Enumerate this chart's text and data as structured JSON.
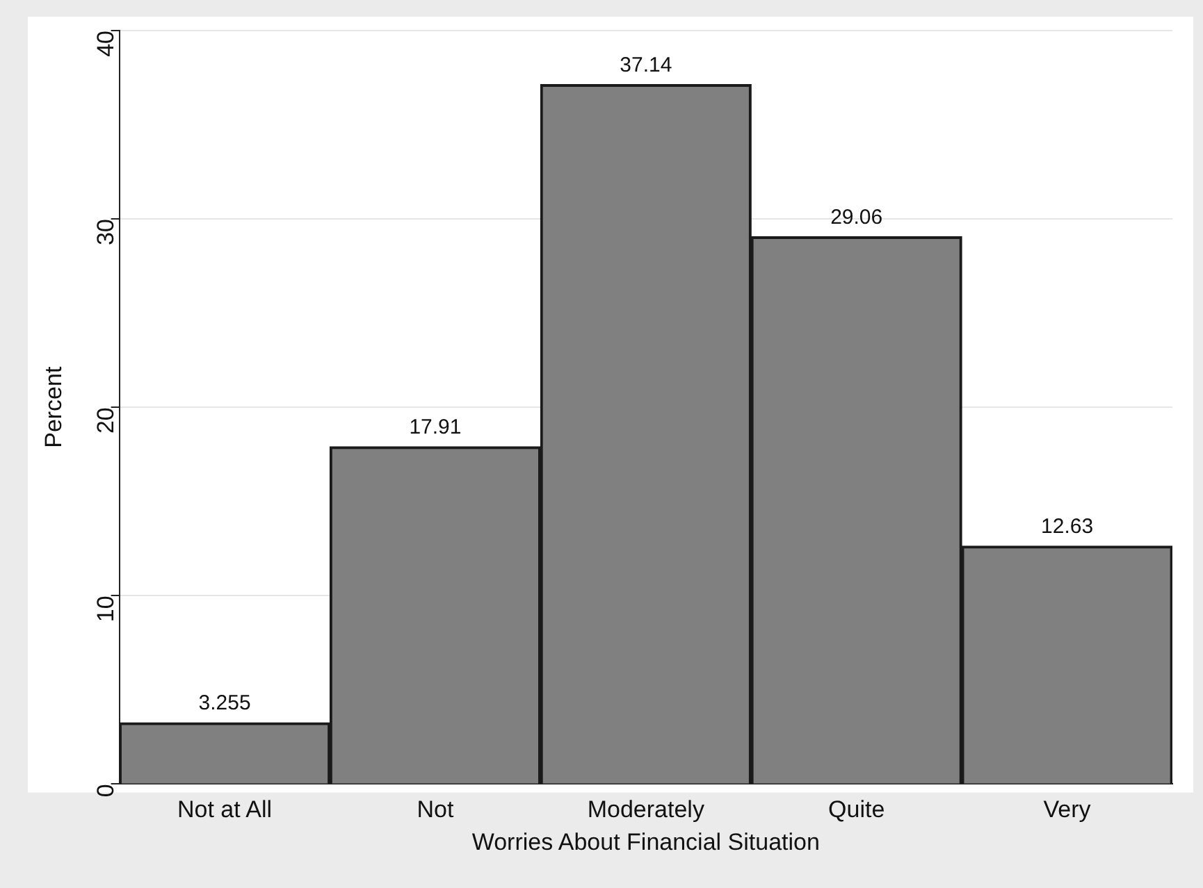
{
  "chart_data": {
    "type": "bar",
    "xlabel": "Worries About Financial Situation",
    "ylabel": "Percent",
    "categories": [
      "Not at All",
      "Not",
      "Moderately",
      "Quite",
      "Very"
    ],
    "values": [
      3.255,
      17.91,
      37.14,
      29.06,
      12.63
    ],
    "color": "#808080",
    "ylim": [
      0,
      40
    ],
    "yticks": [
      0,
      10,
      20,
      30,
      40
    ],
    "grid": "y",
    "data_labels": true,
    "legend": false
  }
}
